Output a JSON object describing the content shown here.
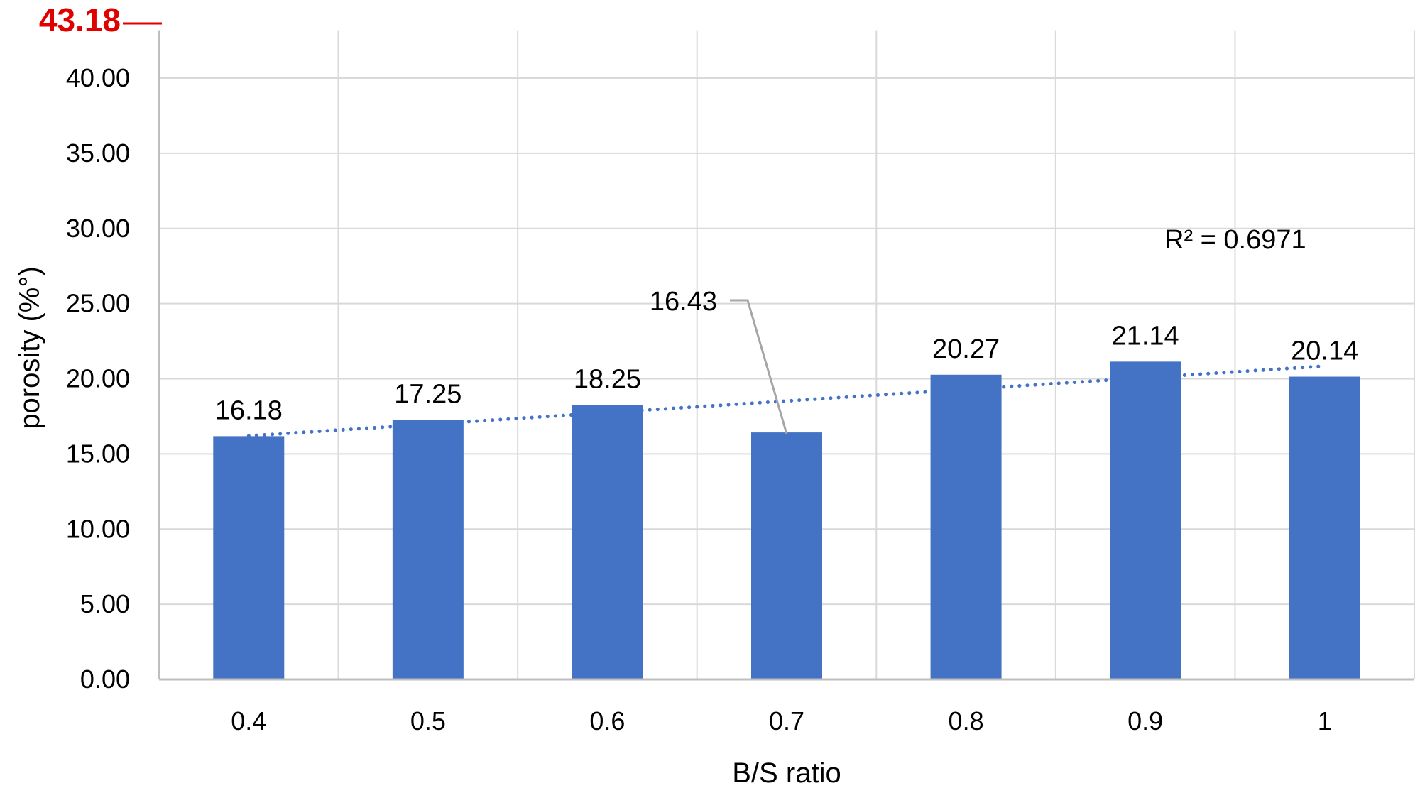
{
  "chart_data": {
    "type": "bar",
    "categories": [
      "0.4",
      "0.5",
      "0.6",
      "0.7",
      "0.8",
      "0.9",
      "1"
    ],
    "values": [
      16.18,
      17.25,
      18.25,
      16.43,
      20.27,
      21.14,
      20.14
    ],
    "value_labels": [
      "16.18",
      "17.25",
      "18.25",
      "16.43",
      "20.27",
      "21.14",
      "20.14"
    ],
    "xlabel": "B/S ratio",
    "ylabel": "porosity (%°)",
    "ylim": [
      0,
      43.18
    ],
    "yticks": [
      0,
      5,
      10,
      15,
      20,
      25,
      30,
      35,
      40
    ],
    "ytick_labels": [
      "0.00",
      "5.00",
      "10.00",
      "15.00",
      "20.00",
      "25.00",
      "30.00",
      "35.00",
      "40.00"
    ],
    "top_label": "43.18",
    "grid": true,
    "trendline": {
      "type": "linear",
      "style": "dotted",
      "r2_label": "R² = 0.6971"
    },
    "colors": {
      "bar": "#4472C4",
      "trend": "#4472C4",
      "grid": "#D9D9D9",
      "axis": "#BFBFBF",
      "top_label": "#E00000",
      "leader": "#A6A6A6"
    }
  }
}
